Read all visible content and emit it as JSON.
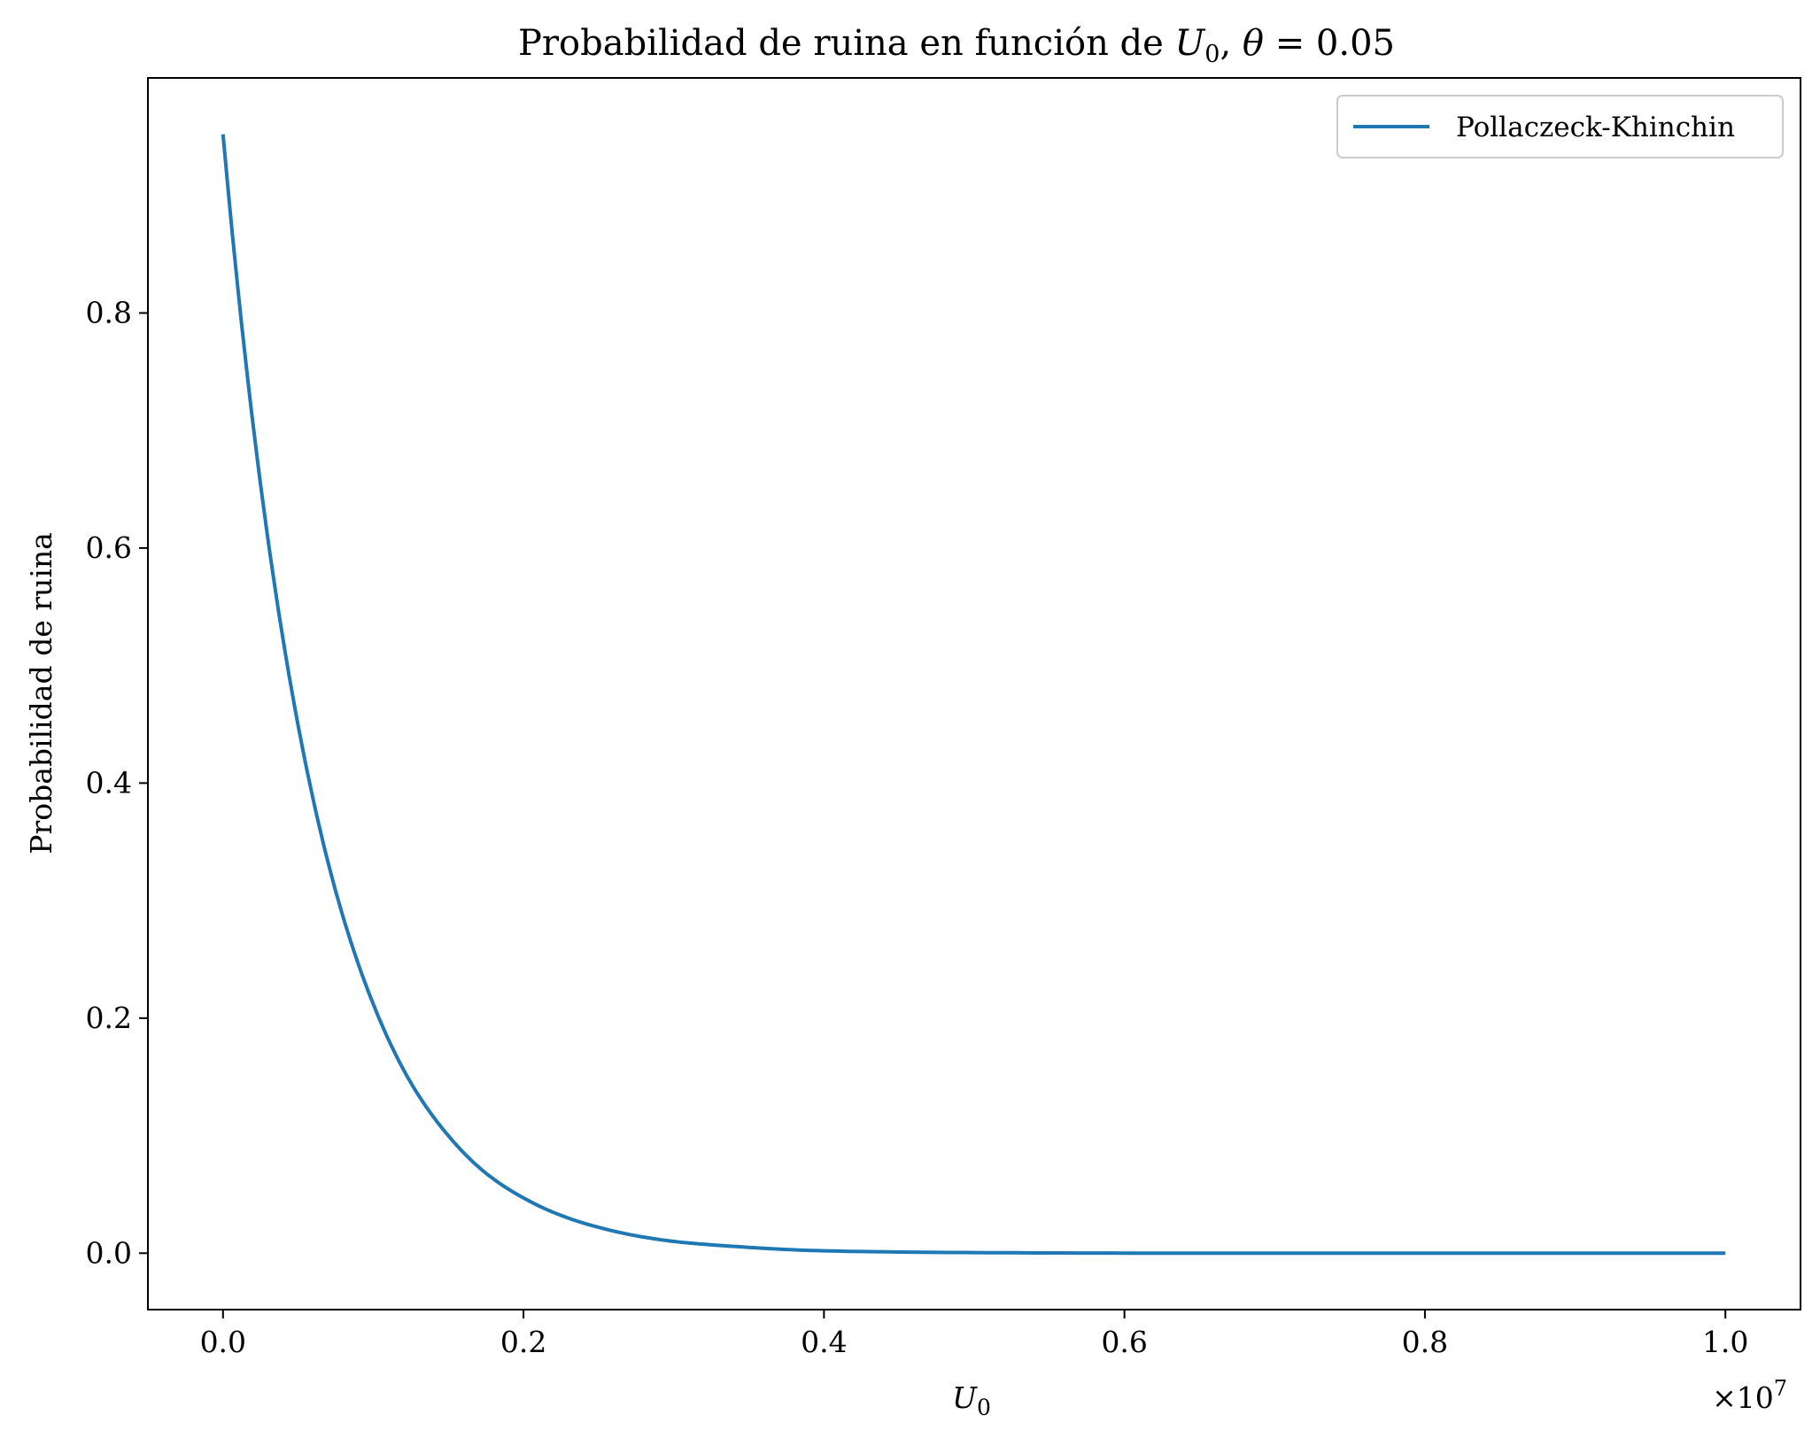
{
  "chart_data": {
    "type": "line",
    "title": "Probabilidad de ruina en función de U₀, θ = 0.05",
    "title_parts": {
      "prefix": "Probabilidad de ruina en función de ",
      "var": "U",
      "sub": "0",
      "sep": ", ",
      "theta": "θ",
      "eq": " = 0.05"
    },
    "xlabel": "U₀",
    "xlabel_parts": {
      "var": "U",
      "sub": "0"
    },
    "ylabel": "Probabilidad de ruina",
    "x_multiplier": "×10⁷",
    "x_multiplier_parts": {
      "base": "×10",
      "exp": "7"
    },
    "xlim": [
      -0.05,
      1.05
    ],
    "ylim": [
      -0.048,
      1.0
    ],
    "xticks": [
      0.0,
      0.2,
      0.4,
      0.6,
      0.8,
      1.0
    ],
    "xtick_labels": [
      "0.0",
      "0.2",
      "0.4",
      "0.6",
      "0.8",
      "1.0"
    ],
    "yticks": [
      0.0,
      0.2,
      0.4,
      0.6,
      0.8
    ],
    "ytick_labels": [
      "0.0",
      "0.2",
      "0.4",
      "0.6",
      "0.8"
    ],
    "grid": false,
    "legend_position": "top-right",
    "series": [
      {
        "name": "Pollaczeck-Khinchin",
        "color": "#1f77b4",
        "x": [
          0.0,
          0.025,
          0.05,
          0.075,
          0.1,
          0.125,
          0.15,
          0.175,
          0.2,
          0.25,
          0.3,
          0.35,
          0.4,
          0.5,
          0.6,
          0.7,
          0.8,
          0.9,
          1.0
        ],
        "y": [
          0.952,
          0.654,
          0.449,
          0.308,
          0.212,
          0.145,
          0.1,
          0.068,
          0.047,
          0.022,
          0.01,
          0.005,
          0.002,
          0.0005,
          0.0001,
          0.0,
          0.0,
          0.0,
          0.0
        ]
      }
    ]
  }
}
